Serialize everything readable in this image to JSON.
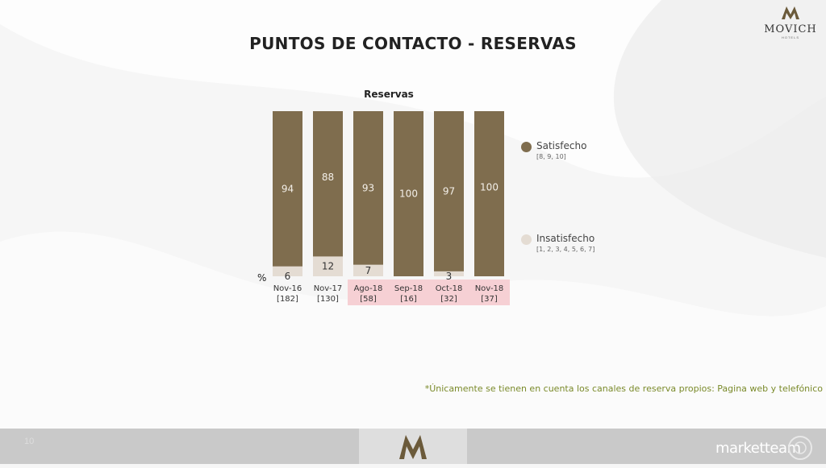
{
  "brand": {
    "name": "MOVICH",
    "sub": "HOTELS"
  },
  "title": "PUNTOS DE CONTACTO - RESERVAS",
  "chart_title": "Reservas",
  "percent_label": "%",
  "legend": [
    {
      "label": "Satisfecho",
      "scale": "[8, 9, 10]",
      "color": "#7f6d4e"
    },
    {
      "label": "Insatisfecho",
      "scale": "[1, 2, 3, 4, 5, 6, 7]",
      "color": "#e4dcd3"
    }
  ],
  "chart_data": {
    "type": "bar",
    "stacked": true,
    "title": "Reservas",
    "categories": [
      "Nov-16",
      "Nov-17",
      "Ago-18",
      "Sep-18",
      "Oct-18",
      "Nov-18"
    ],
    "bases": [
      "[182]",
      "[130]",
      "[58]",
      "[16]",
      "[32]",
      "[37]"
    ],
    "highlighted_categories": [
      "Ago-18",
      "Sep-18",
      "Oct-18",
      "Nov-18"
    ],
    "series": [
      {
        "name": "Insatisfecho",
        "values": [
          6,
          12,
          7,
          0,
          3,
          0
        ],
        "labels": [
          "6",
          "12",
          "7",
          "",
          "3",
          ""
        ],
        "color": "#e4dcd3"
      },
      {
        "name": "Satisfecho",
        "values": [
          94,
          88,
          93,
          100,
          97,
          100
        ],
        "labels": [
          "94",
          "88",
          "93",
          "100",
          "97",
          "100"
        ],
        "color": "#7f6d4e"
      }
    ],
    "ylim": [
      0,
      100
    ],
    "ylabel": "%",
    "highlight_color": "#f6d0d4"
  },
  "footnote": "*Únicamente se tienen en cuenta los canales de reserva propios: Pagina web y telefónico",
  "footer": {
    "brand": "marketteam",
    "page": "10"
  }
}
